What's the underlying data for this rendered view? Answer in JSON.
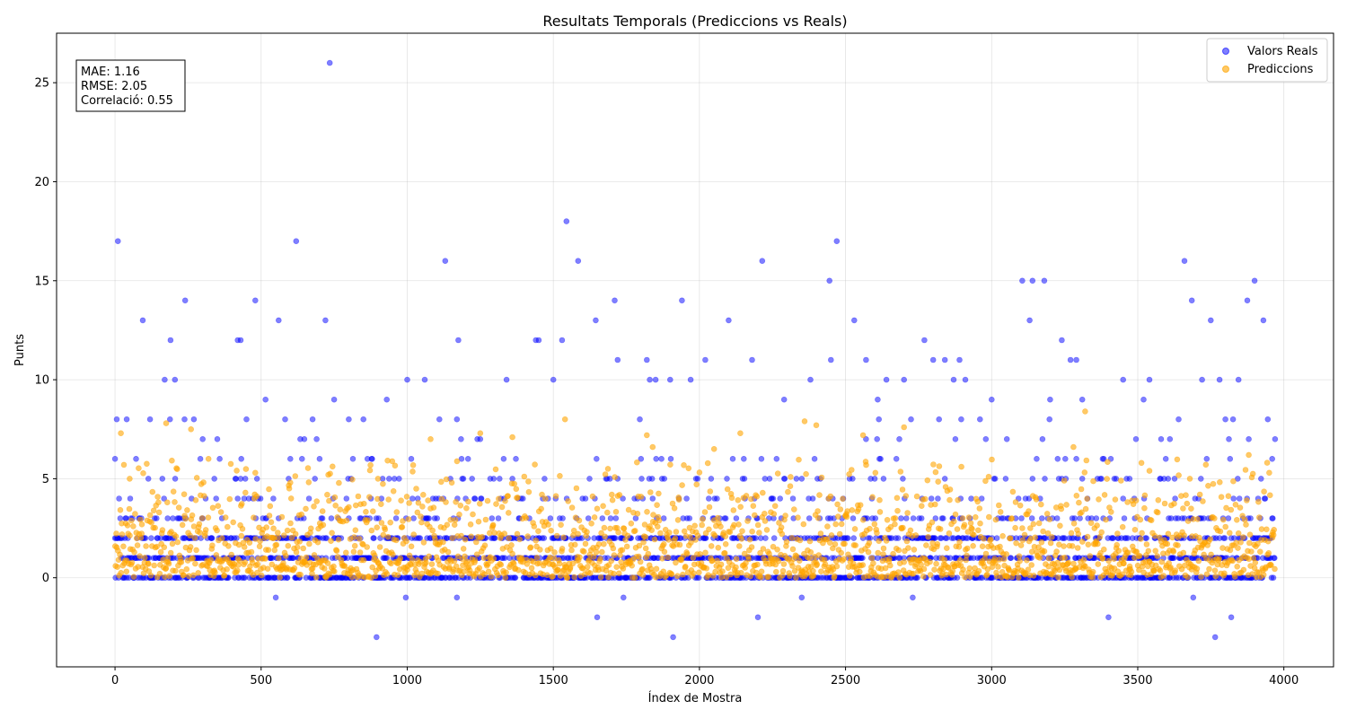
{
  "chart_data": {
    "type": "scatter",
    "title": "Resultats Temporals (Prediccions vs Reals)",
    "xlabel": "Índex de Mostra",
    "ylabel": "Punts",
    "xlim": [
      -200,
      4170
    ],
    "ylim": [
      -4.5,
      27.5
    ],
    "xticks": [
      0,
      500,
      1000,
      1500,
      2000,
      2500,
      3000,
      3500,
      4000
    ],
    "yticks": [
      0,
      5,
      10,
      15,
      20,
      25
    ],
    "grid": true,
    "legend_position": "top-right",
    "n_samples": 3970,
    "stats_box": {
      "position": "top-left",
      "lines": [
        "MAE: 1.16",
        "RMSE: 2.05",
        "Correlació: 0.55"
      ]
    },
    "series": [
      {
        "name": "Valors Reals",
        "color": "#0000ff",
        "opacity": 0.5,
        "points": [
          [
            0,
            6
          ],
          [
            10,
            17
          ],
          [
            40,
            8
          ],
          [
            95,
            13
          ],
          [
            120,
            8
          ],
          [
            170,
            10
          ],
          [
            190,
            12
          ],
          [
            205,
            10
          ],
          [
            240,
            14
          ],
          [
            270,
            8
          ],
          [
            300,
            7
          ],
          [
            420,
            12
          ],
          [
            430,
            12
          ],
          [
            480,
            14
          ],
          [
            515,
            9
          ],
          [
            550,
            -1
          ],
          [
            560,
            13
          ],
          [
            620,
            17
          ],
          [
            700,
            6
          ],
          [
            720,
            13
          ],
          [
            735,
            26
          ],
          [
            750,
            9
          ],
          [
            800,
            8
          ],
          [
            850,
            8
          ],
          [
            895,
            -3
          ],
          [
            930,
            9
          ],
          [
            995,
            -1
          ],
          [
            1000,
            10
          ],
          [
            1060,
            10
          ],
          [
            1130,
            16
          ],
          [
            1170,
            -1
          ],
          [
            1175,
            12
          ],
          [
            1250,
            7
          ],
          [
            1340,
            10
          ],
          [
            1440,
            12
          ],
          [
            1450,
            12
          ],
          [
            1500,
            10
          ],
          [
            1530,
            12
          ],
          [
            1545,
            18
          ],
          [
            1585,
            16
          ],
          [
            1645,
            13
          ],
          [
            1650,
            -2
          ],
          [
            1710,
            14
          ],
          [
            1720,
            11
          ],
          [
            1740,
            -1
          ],
          [
            1820,
            11
          ],
          [
            1830,
            10
          ],
          [
            1850,
            10
          ],
          [
            1900,
            10
          ],
          [
            1910,
            -3
          ],
          [
            1940,
            14
          ],
          [
            1970,
            10
          ],
          [
            2020,
            11
          ],
          [
            2100,
            13
          ],
          [
            2180,
            11
          ],
          [
            2200,
            -2
          ],
          [
            2215,
            16
          ],
          [
            2290,
            9
          ],
          [
            2350,
            -1
          ],
          [
            2380,
            10
          ],
          [
            2445,
            15
          ],
          [
            2450,
            11
          ],
          [
            2470,
            17
          ],
          [
            2530,
            13
          ],
          [
            2570,
            11
          ],
          [
            2610,
            9
          ],
          [
            2640,
            10
          ],
          [
            2700,
            10
          ],
          [
            2730,
            -1
          ],
          [
            2770,
            12
          ],
          [
            2800,
            11
          ],
          [
            2840,
            11
          ],
          [
            2870,
            10
          ],
          [
            2890,
            11
          ],
          [
            2910,
            10
          ],
          [
            2960,
            8
          ],
          [
            3000,
            9
          ],
          [
            3105,
            15
          ],
          [
            3130,
            13
          ],
          [
            3140,
            15
          ],
          [
            3180,
            15
          ],
          [
            3200,
            9
          ],
          [
            3240,
            12
          ],
          [
            3270,
            11
          ],
          [
            3290,
            11
          ],
          [
            3310,
            9
          ],
          [
            3400,
            -2
          ],
          [
            3450,
            10
          ],
          [
            3520,
            9
          ],
          [
            3540,
            10
          ],
          [
            3580,
            7
          ],
          [
            3610,
            7
          ],
          [
            3640,
            8
          ],
          [
            3660,
            16
          ],
          [
            3685,
            14
          ],
          [
            3690,
            -1
          ],
          [
            3720,
            10
          ],
          [
            3750,
            13
          ],
          [
            3765,
            -3
          ],
          [
            3780,
            10
          ],
          [
            3800,
            8
          ],
          [
            3820,
            -2
          ],
          [
            3845,
            10
          ],
          [
            3875,
            14
          ],
          [
            3900,
            15
          ],
          [
            3930,
            13
          ],
          [
            3945,
            8
          ],
          [
            3960,
            6
          ],
          [
            3970,
            7
          ]
        ]
      },
      {
        "name": "Prediccions",
        "color": "#ffa500",
        "opacity": 0.6,
        "points": [
          [
            20,
            7.3
          ],
          [
            50,
            5.0
          ],
          [
            175,
            7.8
          ],
          [
            260,
            7.5
          ],
          [
            320,
            6.0
          ],
          [
            480,
            5.3
          ],
          [
            600,
            4.8
          ],
          [
            730,
            5.2
          ],
          [
            900,
            5.0
          ],
          [
            1080,
            7.0
          ],
          [
            1250,
            7.3
          ],
          [
            1360,
            7.1
          ],
          [
            1540,
            8.0
          ],
          [
            1700,
            4.2
          ],
          [
            1820,
            7.2
          ],
          [
            1840,
            6.6
          ],
          [
            2050,
            6.5
          ],
          [
            2140,
            7.3
          ],
          [
            2360,
            7.9
          ],
          [
            2400,
            7.7
          ],
          [
            2560,
            7.2
          ],
          [
            2700,
            7.6
          ],
          [
            2990,
            5.1
          ],
          [
            3280,
            6.6
          ],
          [
            3320,
            8.4
          ],
          [
            3540,
            5.4
          ],
          [
            3880,
            6.2
          ],
          [
            3950,
            5.3
          ]
        ]
      }
    ]
  }
}
